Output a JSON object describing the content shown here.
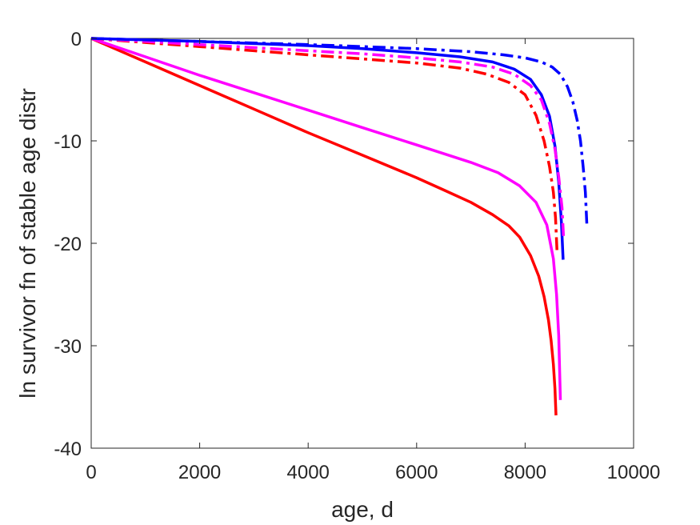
{
  "chart_data": {
    "type": "line",
    "title": "",
    "xlabel": "age, d",
    "ylabel": "ln survivor fn of stable age distr",
    "xlim": [
      0,
      10000
    ],
    "ylim": [
      -40,
      0
    ],
    "xticks": [
      0,
      2000,
      4000,
      6000,
      8000,
      10000
    ],
    "yticks": [
      0,
      -10,
      -20,
      -30,
      -40
    ],
    "xtick_labels": [
      "0",
      "2000",
      "4000",
      "6000",
      "8000",
      "10000"
    ],
    "ytick_labels": [
      "0",
      "-10",
      "-20",
      "-30",
      "-40"
    ],
    "grid": false,
    "legend": "none",
    "series": [
      {
        "color": "#ff0000",
        "style": "solid",
        "x": [
          0,
          1000,
          2000,
          3000,
          4000,
          5000,
          6000,
          6500,
          7000,
          7400,
          7700,
          7900,
          8100,
          8250,
          8350,
          8430,
          8480,
          8520,
          8550,
          8570
        ],
        "y": [
          0,
          -2.3,
          -4.6,
          -6.9,
          -9.2,
          -11.4,
          -13.6,
          -14.8,
          -16.0,
          -17.2,
          -18.3,
          -19.4,
          -21.2,
          -23.2,
          -25.2,
          -27.5,
          -29.5,
          -31.8,
          -34.2,
          -36.8
        ]
      },
      {
        "color": "#ff00ff",
        "style": "solid",
        "x": [
          0,
          1000,
          2000,
          3000,
          4000,
          5000,
          6000,
          7000,
          7500,
          7900,
          8200,
          8400,
          8520,
          8580,
          8620,
          8650
        ],
        "y": [
          0,
          -1.8,
          -3.6,
          -5.3,
          -7.0,
          -8.7,
          -10.4,
          -12.1,
          -13.1,
          -14.4,
          -16.0,
          -18.2,
          -21.5,
          -25.0,
          -29.0,
          -35.3
        ]
      },
      {
        "color": "#0000ff",
        "style": "solid",
        "x": [
          0,
          2000,
          4000,
          5000,
          6000,
          6800,
          7400,
          7800,
          8100,
          8300,
          8450,
          8550,
          8620,
          8670,
          8700
        ],
        "y": [
          0,
          -0.3,
          -0.7,
          -1.0,
          -1.4,
          -1.8,
          -2.3,
          -3.0,
          -4.0,
          -5.5,
          -7.6,
          -10.5,
          -14.0,
          -18.0,
          -21.6
        ]
      },
      {
        "color": "#ff0000",
        "style": "dashdot",
        "x": [
          0,
          1000,
          2000,
          3000,
          4000,
          5000,
          6000,
          6800,
          7300,
          7700,
          8000,
          8200,
          8350,
          8450,
          8520,
          8560,
          8590
        ],
        "y": [
          0,
          -0.4,
          -0.8,
          -1.2,
          -1.6,
          -2.0,
          -2.4,
          -2.9,
          -3.5,
          -4.3,
          -5.5,
          -7.5,
          -10.0,
          -12.5,
          -15.0,
          -17.5,
          -21.0
        ]
      },
      {
        "color": "#ff00ff",
        "style": "dashdot",
        "x": [
          0,
          1000,
          2000,
          3000,
          4000,
          5000,
          6000,
          6800,
          7400,
          7800,
          8100,
          8300,
          8450,
          8550,
          8620,
          8680,
          8710
        ],
        "y": [
          0,
          -0.3,
          -0.6,
          -0.9,
          -1.2,
          -1.5,
          -1.9,
          -2.3,
          -2.8,
          -3.5,
          -4.6,
          -6.0,
          -8.3,
          -10.8,
          -13.5,
          -16.5,
          -19.5
        ]
      },
      {
        "color": "#0000ff",
        "style": "dashdot",
        "x": [
          0,
          2000,
          4000,
          5000,
          6000,
          7000,
          7600,
          8000,
          8300,
          8500,
          8650,
          8780,
          8880,
          8960,
          9020,
          9070,
          9110,
          9140
        ],
        "y": [
          0,
          -0.3,
          -0.6,
          -0.8,
          -1.0,
          -1.3,
          -1.6,
          -1.9,
          -2.3,
          -2.8,
          -3.5,
          -4.7,
          -6.2,
          -8.0,
          -10.0,
          -12.5,
          -15.0,
          -18.4
        ]
      }
    ]
  }
}
